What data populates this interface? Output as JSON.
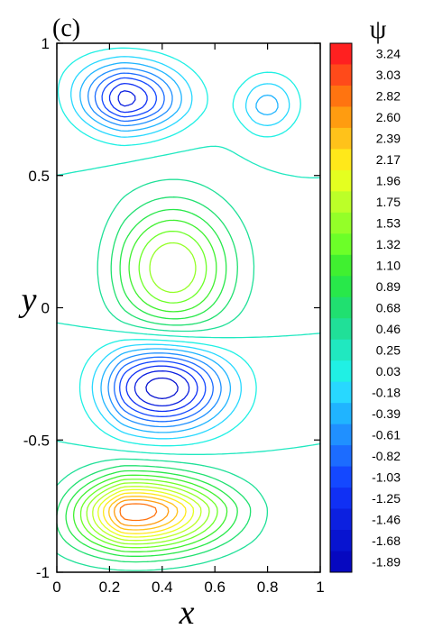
{
  "chart_data": {
    "type": "contour",
    "panel_label": "(c)",
    "xlabel": "x",
    "ylabel": "y",
    "xlim": [
      0,
      1
    ],
    "ylim": [
      -1,
      1
    ],
    "x_ticks": [
      "0",
      "0.2",
      "0.4",
      "0.6",
      "0.8",
      "1"
    ],
    "x_tick_values": [
      0,
      0.2,
      0.4,
      0.6,
      0.8,
      1
    ],
    "y_ticks": [
      "-1",
      "-0.5",
      "0",
      "0.5",
      "1"
    ],
    "y_tick_values": [
      -1,
      -0.5,
      0,
      0.5,
      1
    ],
    "colorbar": {
      "title": "ψ",
      "levels": [
        "3.24",
        "3.03",
        "2.82",
        "2.60",
        "2.39",
        "2.17",
        "1.96",
        "1.75",
        "1.53",
        "1.32",
        "1.10",
        "0.89",
        "0.68",
        "0.46",
        "0.25",
        "0.03",
        "-0.18",
        "-0.39",
        "-0.61",
        "-0.82",
        "-1.03",
        "-1.25",
        "-1.46",
        "-1.68",
        "-1.89"
      ],
      "colors": [
        "#ff0000",
        "#ff3300",
        "#ff6600",
        "#ff9900",
        "#ffcc00",
        "#ffff00",
        "#ccff00",
        "#99ff00",
        "#66ff00",
        "#33ff00",
        "#00ff00",
        "#00ff33",
        "#00ff66",
        "#00ff99",
        "#00ffcc",
        "#00ffff",
        "#00ccff",
        "#0099ff",
        "#0066ff",
        "#0033ff",
        "#0000ff",
        "#0000cc",
        "#000099",
        "#000066",
        "#000044"
      ]
    },
    "vortices": [
      {
        "name": "upper",
        "center": [
          0.25,
          0.82
        ],
        "psi_center": -1.68
      },
      {
        "name": "upper-right",
        "center": [
          0.82,
          0.8
        ],
        "psi_center": -0.61
      },
      {
        "name": "middle",
        "center": [
          0.43,
          0.15
        ],
        "psi_center": 1.75
      },
      {
        "name": "lower-middle",
        "center": [
          0.4,
          -0.3
        ],
        "psi_center": -1.68
      },
      {
        "name": "bottom",
        "center": [
          0.3,
          -0.8
        ],
        "psi_center": 3.24
      }
    ]
  }
}
